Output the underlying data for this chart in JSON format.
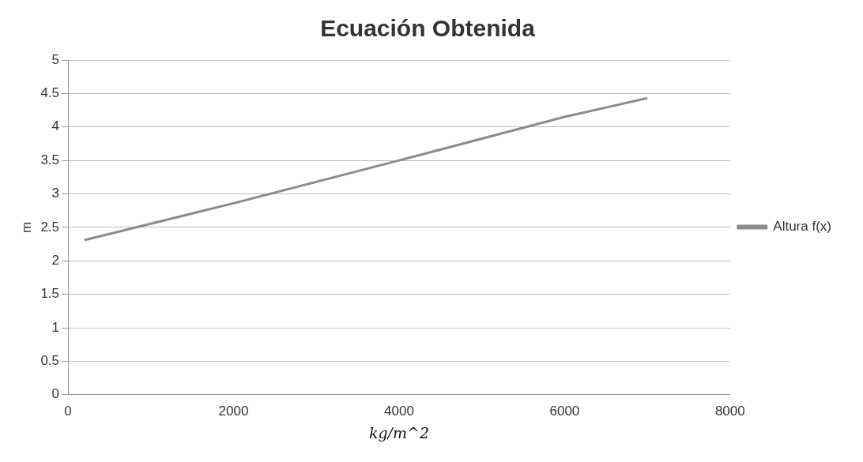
{
  "chart_data": {
    "type": "line",
    "title": "Ecuación Obtenida",
    "xlabel": "kg/m^2",
    "ylabel": "m",
    "series": [
      {
        "name": "Altura f(x)",
        "color": "#8c8c8c",
        "x": [
          200,
          2000,
          4000,
          6000,
          7000
        ],
        "values": [
          2.31,
          2.86,
          3.5,
          4.15,
          4.43
        ]
      }
    ],
    "xlim": [
      0,
      8000
    ],
    "xticks": [
      0,
      2000,
      4000,
      6000,
      8000
    ],
    "ylim": [
      0,
      5
    ],
    "yticks": [
      0,
      0.5,
      1,
      1.5,
      2,
      2.5,
      3,
      3.5,
      4,
      4.5,
      5
    ],
    "grid": "y",
    "legend": "right",
    "marker": "none",
    "line_style": "solid"
  }
}
